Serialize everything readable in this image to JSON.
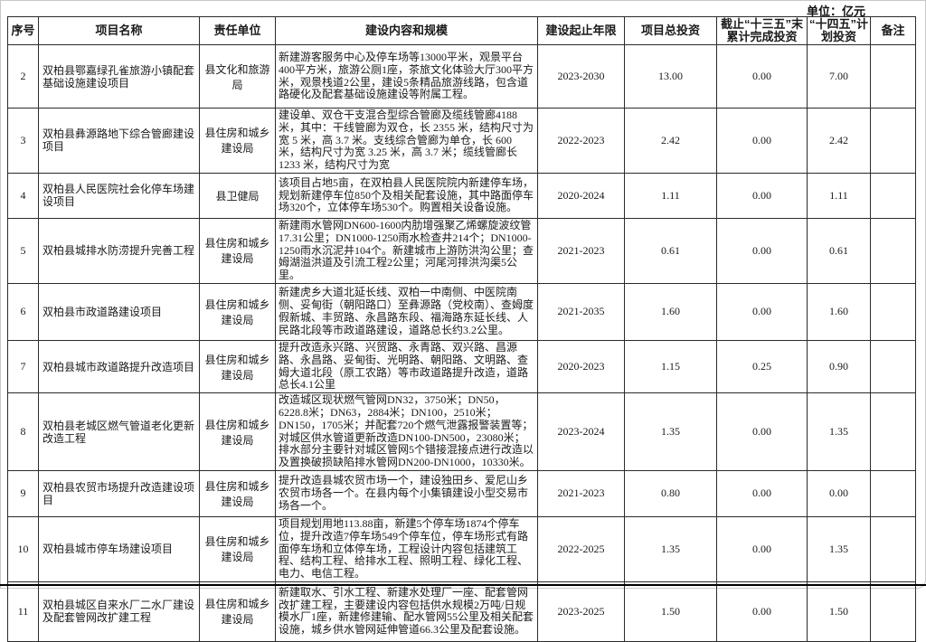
{
  "unit_label": "单位：亿元",
  "table": {
    "headers": [
      "序号",
      "项目名称",
      "责任单位",
      "建设内容和规模",
      "建设起止年限",
      "项目总投资",
      "截止“十三五”末累计完成投资",
      "“十四五”计划投资",
      "备注"
    ],
    "rows": [
      {
        "seq": "2",
        "name": "双柏县鄂嘉绿孔雀旅游小镇配套基础设施建设项目",
        "unit": "县文化和旅游局",
        "content": "新建游客服务中心及停车场等13000平米，观景平台400平方米，旅游公厕1座，茶旅文化体验大厅300平方米，观景栈道2公里，建设5条精品旅游线路，包含道路硬化及配套基础设施建设等附属工程。",
        "years": "2023-2030",
        "total": "13.00",
        "completed": "0.00",
        "planned": "7.00",
        "note": ""
      },
      {
        "seq": "3",
        "name": "双柏县彝源路地下综合管廊建设项目",
        "unit": "县住房和城乡建设局",
        "content": "建设单、双仓干支混合型综合管廊及缆线管廊4188米，其中：干线管廊为双仓，长 2355 米，结构尺寸为宽 5 米，高 3.7 米。支线综合管廊为单仓，长 600 米，结构尺寸为宽 3.25 米，高 3.7 米；缆线管廊长 1233 米，结构尺寸为宽",
        "years": "2022-2023",
        "total": "2.42",
        "completed": "0.00",
        "planned": "2.42",
        "note": ""
      },
      {
        "seq": "4",
        "name": "双柏县人民医院社会化停车场建设项目",
        "unit": "县卫健局",
        "content": "该项目占地5亩，在双柏县人民医院院内新建停车场，规划新建停车位850个及相关配套设施，其中路面停车场320个，立体停车场530个。购置相关设备设施。",
        "years": "2020-2024",
        "total": "1.11",
        "completed": "0.00",
        "planned": "1.11",
        "note": ""
      },
      {
        "seq": "5",
        "name": "双柏县城排水防涝提升完善工程",
        "unit": "县住房和城乡建设局",
        "content": "新建雨水管网DN600-1600内肋增强聚乙烯螺旋波纹管17.31公里；DN1000-1250雨水检查井214个；DN1000-1250雨水沉泥井104个。新建城市上游防洪沟公里；查姆湖溢洪道及引流工程2公里；河尾河排洪沟渠5公里。",
        "years": "2021-2023",
        "total": "0.61",
        "completed": "0.00",
        "planned": "0.61",
        "note": ""
      },
      {
        "seq": "6",
        "name": "双柏县市政道路建设项目",
        "unit": "县住房和城乡建设局",
        "content": "新建虎乡大道北延长线、双柏一中南侧、中医院南侧、妥甸街（朝阳路口）至彝源路（党校南）、查姆度假新城、丰贸路、永昌路东段、福海路东延长线、人民路北段等市政道路建设，道路总长约3.2公里。",
        "years": "2021-2035",
        "total": "1.60",
        "completed": "0.00",
        "planned": "1.60",
        "note": ""
      },
      {
        "seq": "7",
        "name": "双柏县城市政道路提升改造项目",
        "unit": "县住房和城乡建设局",
        "content": "提升改造永兴路、兴贸路、永青路、双兴路、昌源路、永昌路、妥甸街、光明路、朝阳路、文明路、查姆大道北段（原工农路）等市政道路提升改造，道路总长4.1公里",
        "years": "2020-2023",
        "total": "1.15",
        "completed": "0.25",
        "planned": "0.90",
        "note": ""
      },
      {
        "seq": "8",
        "name": "双柏县老城区燃气管道老化更新改造工程",
        "unit": "县住房和城乡建设局",
        "content": "改造城区现状燃气管网DN32，3750米；DN50，6228.8米；DN63，2884米；DN100，2510米；DN150，1705米；并配套720个燃气泄露报警装置等；对城区供水管道更新改造DN100-DN500，23080米；排水部分主要针对城区管网5个错接混接点进行改造以及置换破损缺陷排水管网DN200-DN1000，10330米。",
        "years": "2023-2024",
        "total": "1.35",
        "completed": "0.00",
        "planned": "1.35",
        "note": ""
      },
      {
        "seq": "9",
        "name": "双柏县农贸市场提升改造建设项目",
        "unit": "县住房和城乡建设局",
        "content": "提升改造县城农贸市场一个，建设独田乡、爱尼山乡农贸市场各一个。在县内每个小集镇建设小型交易市场各一个。",
        "years": "2021-2023",
        "total": "0.80",
        "completed": "0.00",
        "planned": "0.00",
        "note": ""
      },
      {
        "seq": "10",
        "name": "双柏县城市停车场建设项目",
        "unit": "县住房和城乡建设局",
        "content": "项目规划用地113.88亩，新建5个停车场1874个停车位，提升改造7停车场549个停车位，停车场形式有路面停车场和立体停车场，工程设计内容包括建筑工程、结构工程、给排水工程、照明工程、绿化工程、电力、电信工程。",
        "years": "2022-2025",
        "total": "1.35",
        "completed": "0.00",
        "planned": "1.35",
        "note": ""
      },
      {
        "seq": "11",
        "name": "双柏县城区自来水厂二水厂建设及配套管网改扩建工程",
        "unit": "县住房和城乡建设局",
        "content": "新建取水、引水工程、新建水处理厂一座、配套管网改扩建工程，主要建设内容包括供水规模2万吨/日规模水厂1座，新建修建输、配水管网55公里及相关配套设施，城乡供水管网延伸管道66.3公里及配套设施。",
        "years": "2023-2025",
        "total": "1.50",
        "completed": "0.00",
        "planned": "1.50",
        "note": ""
      }
    ]
  }
}
